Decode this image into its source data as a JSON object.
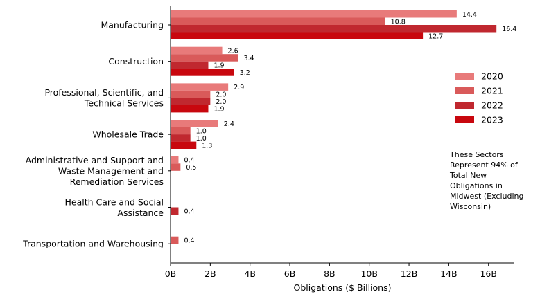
{
  "chart_data": {
    "type": "bar",
    "orientation": "horizontal",
    "categories": [
      [
        "Manufacturing"
      ],
      [
        "Construction"
      ],
      [
        "Professional, Scientific, and",
        "Technical Services"
      ],
      [
        "Wholesale Trade"
      ],
      [
        "Administrative and Support and",
        "Waste Management and",
        "Remediation Services"
      ],
      [
        "Health Care and Social",
        "Assistance"
      ],
      [
        "Transportation and Warehousing"
      ]
    ],
    "series": [
      {
        "name": "2020",
        "color": "#e87a7a",
        "values": [
          14.4,
          2.6,
          2.9,
          2.4,
          0.4,
          null,
          null
        ]
      },
      {
        "name": "2021",
        "color": "#d95a5a",
        "values": [
          10.8,
          3.4,
          2.0,
          1.0,
          0.5,
          null,
          0.4
        ]
      },
      {
        "name": "2022",
        "color": "#c0282f",
        "values": [
          16.4,
          1.9,
          2.0,
          1.0,
          null,
          0.4,
          null
        ]
      },
      {
        "name": "2023",
        "color": "#c8070e",
        "values": [
          12.7,
          3.2,
          1.9,
          1.3,
          null,
          null,
          null
        ]
      }
    ],
    "xlabel": "Obligations ($ Billions)",
    "xlim": [
      0,
      17.3
    ],
    "xticks": [
      {
        "value": 0,
        "label": "0B"
      },
      {
        "value": 2,
        "label": "2B"
      },
      {
        "value": 4,
        "label": "4B"
      },
      {
        "value": 6,
        "label": "6B"
      },
      {
        "value": 8,
        "label": "8B"
      },
      {
        "value": 10,
        "label": "10B"
      },
      {
        "value": 12,
        "label": "12B"
      },
      {
        "value": 14,
        "label": "14B"
      },
      {
        "value": 16,
        "label": "16B"
      }
    ],
    "legend_position": "right",
    "annotation": [
      "These Sectors",
      "Represent 94% of",
      "Total New",
      "Obligations in",
      "Midwest (Excluding",
      "Wisconsin)"
    ],
    "grid": false
  }
}
